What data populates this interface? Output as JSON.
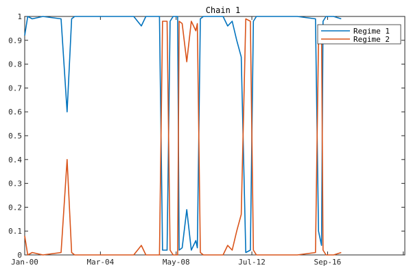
{
  "chart_data": {
    "type": "line",
    "title": "Chain 1",
    "xlabel": "",
    "ylabel": "",
    "xlim": [
      "Jan-00",
      "Dec-20"
    ],
    "ylim": [
      0,
      1
    ],
    "grid": false,
    "legend_position": "top-right",
    "x_tick_labels": [
      "Jan-00",
      "Mar-04",
      "May-08",
      "Jul-12",
      "Sep-16"
    ],
    "x_tick_dates": [
      "2000-01",
      "2004-03",
      "2008-05",
      "2012-07",
      "2016-09"
    ],
    "y_ticks": [
      0,
      0.1,
      0.2,
      0.3,
      0.4,
      0.5,
      0.6,
      0.7,
      0.8,
      0.9,
      1
    ],
    "y_tick_labels": [
      "0",
      "0.1",
      "0.2",
      "0.3",
      "0.4",
      "0.5",
      "0.6",
      "0.7",
      "0.8",
      "0.9",
      "1"
    ],
    "series": [
      {
        "name": "Regime 1",
        "color": "#0072BD",
        "x": [
          "2000-01",
          "2000-03",
          "2000-06",
          "2001-01",
          "2002-01",
          "2002-05",
          "2002-08",
          "2002-10",
          "2003-01",
          "2004-01",
          "2005-01",
          "2006-01",
          "2006-06",
          "2006-09",
          "2007-01",
          "2007-06",
          "2007-08",
          "2007-09",
          "2007-11",
          "2008-01",
          "2008-03",
          "2008-06",
          "2008-07",
          "2008-09",
          "2008-12",
          "2009-03",
          "2009-06",
          "2009-07",
          "2009-09",
          "2009-11",
          "2010-01",
          "2010-03",
          "2010-06",
          "2010-09",
          "2010-12",
          "2011-03",
          "2011-06",
          "2011-09",
          "2011-12",
          "2012-03",
          "2012-06",
          "2012-08",
          "2012-10",
          "2013-01",
          "2013-06",
          "2014-01",
          "2015-01",
          "2016-01",
          "2016-03",
          "2016-05",
          "2016-06",
          "2016-08",
          "2017-01",
          "2017-06"
        ],
        "values": [
          0.92,
          1,
          0.99,
          1,
          0.99,
          0.6,
          0.99,
          1,
          1,
          1,
          1,
          1,
          0.96,
          1,
          1,
          1,
          0.02,
          0.02,
          0.02,
          0.98,
          1,
          1,
          0.02,
          0.03,
          0.19,
          0.02,
          0.06,
          0.03,
          0.99,
          1,
          1,
          1,
          1,
          1,
          1,
          0.96,
          0.98,
          0.9,
          0.83,
          0.01,
          0.02,
          0.98,
          1,
          1,
          1,
          1,
          1,
          0.99,
          0.1,
          0.04,
          0.98,
          1,
          1,
          0.99
        ]
      },
      {
        "name": "Regime 2",
        "color": "#D95319",
        "x": [
          "2000-01",
          "2000-03",
          "2000-06",
          "2001-01",
          "2002-01",
          "2002-05",
          "2002-08",
          "2002-10",
          "2003-01",
          "2004-01",
          "2005-01",
          "2006-01",
          "2006-06",
          "2006-09",
          "2007-01",
          "2007-06",
          "2007-08",
          "2007-09",
          "2007-11",
          "2008-01",
          "2008-03",
          "2008-06",
          "2008-07",
          "2008-09",
          "2008-12",
          "2009-03",
          "2009-06",
          "2009-07",
          "2009-09",
          "2009-11",
          "2010-01",
          "2010-03",
          "2010-06",
          "2010-09",
          "2010-12",
          "2011-03",
          "2011-06",
          "2011-09",
          "2011-12",
          "2012-03",
          "2012-06",
          "2012-08",
          "2012-10",
          "2013-01",
          "2013-06",
          "2014-01",
          "2015-01",
          "2016-01",
          "2016-03",
          "2016-05",
          "2016-06",
          "2016-08",
          "2017-01",
          "2017-06"
        ],
        "values": [
          0.08,
          0,
          0.01,
          0,
          0.01,
          0.4,
          0.01,
          0,
          0,
          0,
          0,
          0,
          0.04,
          0,
          0,
          0,
          0.98,
          0.98,
          0.98,
          0.02,
          0,
          0,
          0.98,
          0.97,
          0.81,
          0.98,
          0.94,
          0.97,
          0.01,
          0,
          0,
          0,
          0,
          0,
          0,
          0.04,
          0.02,
          0.1,
          0.17,
          0.99,
          0.98,
          0.02,
          0,
          0,
          0,
          0,
          0,
          0.01,
          0.9,
          0.96,
          0.02,
          0,
          0,
          0.01
        ]
      }
    ]
  }
}
